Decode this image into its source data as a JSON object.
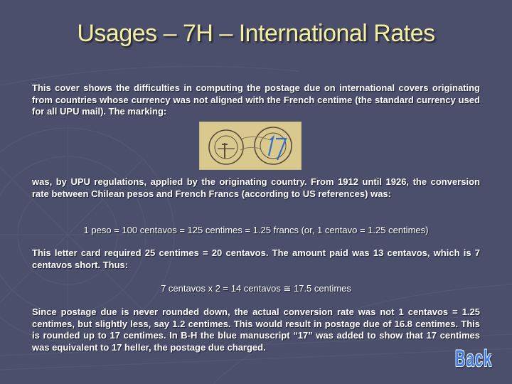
{
  "slide": {
    "title": "Usages – 7H – International Rates",
    "para1": "This cover shows the difficulties in computing the postage due on international covers originating from countries whose currency was not aligned with the French centime (the standard currency used for all UPU mail). The marking:",
    "para2": "was, by UPU regulations, applied by the originating country. From 1912 until 1926, the conversion rate between Chilean pesos and French Francs (according to US references) was:",
    "equation1": "1 peso = 100 centavos = 125 centimes = 1.25 francs (or, 1 centavo = 1.25 centimes)",
    "para3": "This letter card required 25 centimes = 20 centavos. The amount paid was 13 centavos, which is 7 centavos short. Thus:",
    "equation2": "7 centavos x 2 = 14 centavos ≅ 17.5 centimes",
    "para4": "Since postage due is never rounded down, the actual conversion rate was not 1 centavos = 1.25 centimes, but slightly less, say 1.2 centimes. This would result in postage due of 16.8 centimes. This is rounded up to 17 centimes. In B-H the blue manuscript “17” was added to show that 17 centimes was equivalent to 17 heller, the postage due charged.",
    "back_label": "Back"
  },
  "colors": {
    "background": "#4b4f6b",
    "title": "#f3eea0",
    "body_text": "#ffffff",
    "back_button": "#3f7de6",
    "stamp_paper": "#d9c98f"
  },
  "icons": {
    "marking": "postal-marking-image",
    "back": "back-button"
  }
}
